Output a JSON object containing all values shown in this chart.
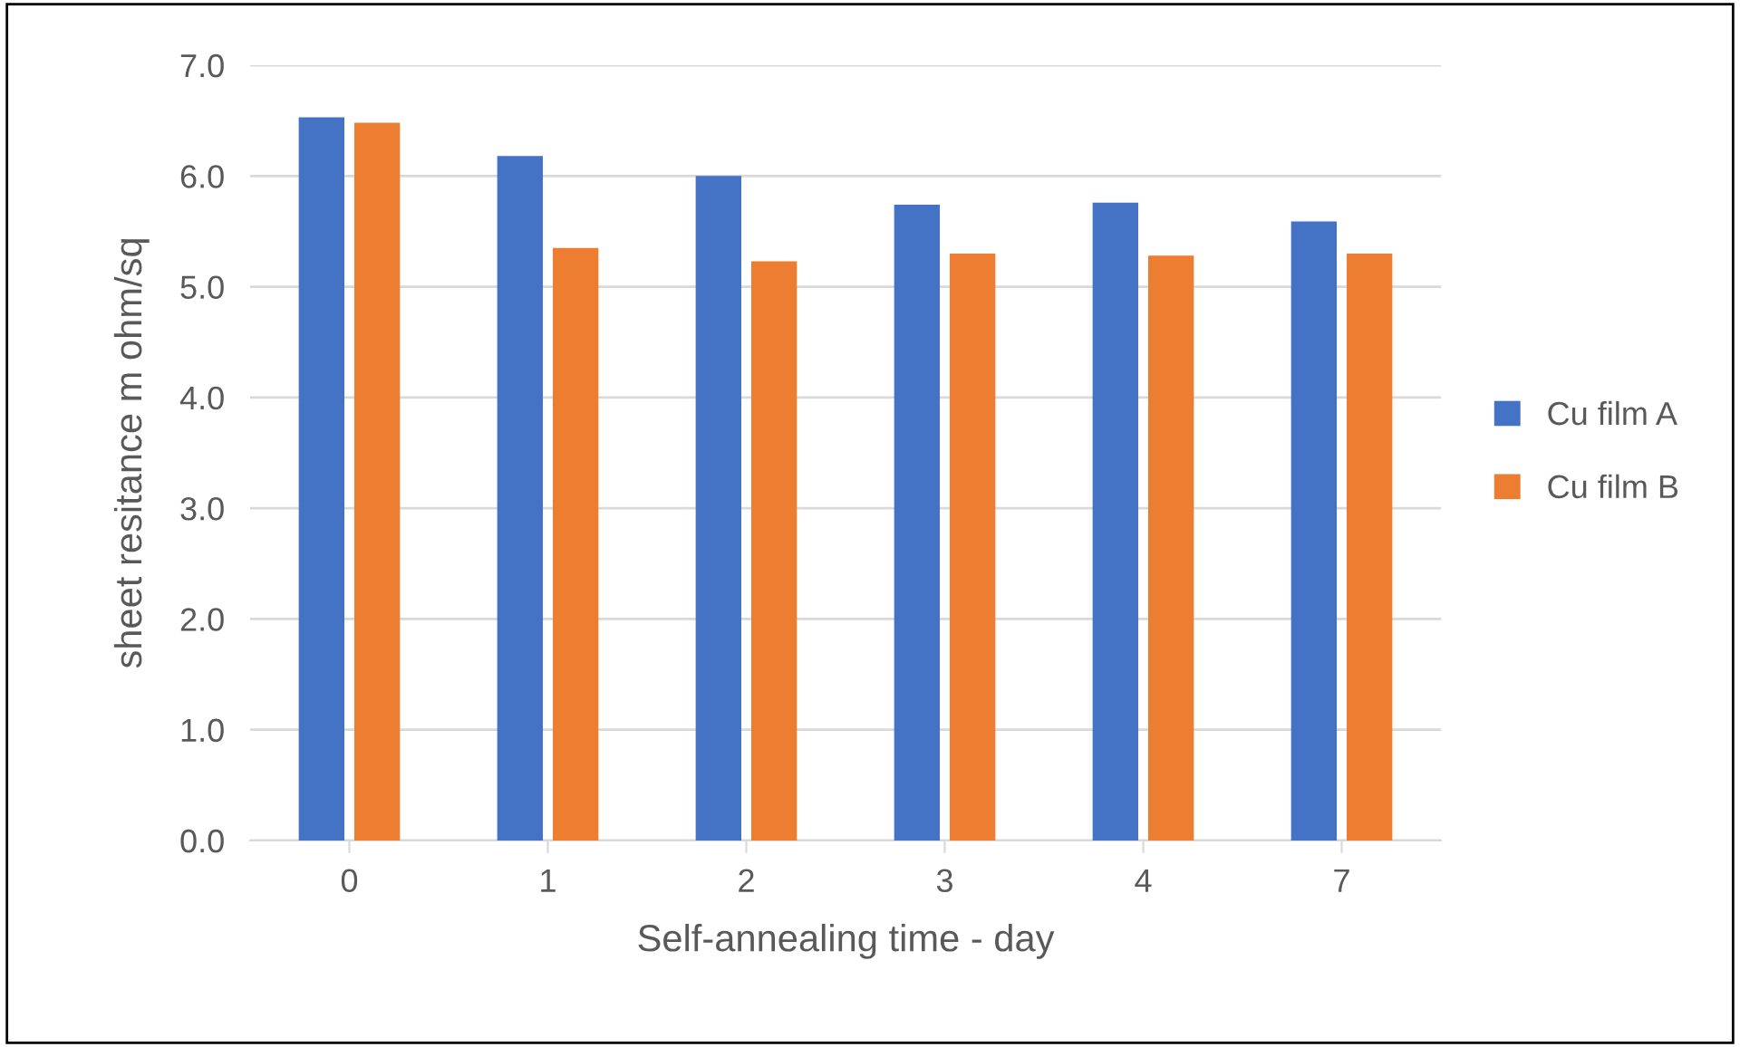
{
  "chart_data": {
    "type": "bar",
    "xlabel": "Self-annealing time - day",
    "ylabel": "sheet resitance m ohm/sq",
    "categories": [
      "0",
      "1",
      "2",
      "3",
      "4",
      "7"
    ],
    "series": [
      {
        "name": "Cu film A",
        "color": "#4472c4",
        "values": [
          6.53,
          6.18,
          6.0,
          5.74,
          5.76,
          5.59
        ]
      },
      {
        "name": "Cu film B",
        "color": "#ed7d31",
        "values": [
          6.48,
          5.35,
          5.23,
          5.3,
          5.28,
          5.3
        ]
      }
    ],
    "ylim": [
      0,
      7
    ],
    "yticks": [
      {
        "value": 0,
        "label": "0.0"
      },
      {
        "value": 1,
        "label": "1.0"
      },
      {
        "value": 2,
        "label": "2.0"
      },
      {
        "value": 3,
        "label": "3.0"
      },
      {
        "value": 4,
        "label": "4.0"
      },
      {
        "value": 5,
        "label": "5.0"
      },
      {
        "value": 6,
        "label": "6.0"
      },
      {
        "value": 7,
        "label": "7.0"
      }
    ],
    "grid": "y",
    "legend": "right"
  }
}
